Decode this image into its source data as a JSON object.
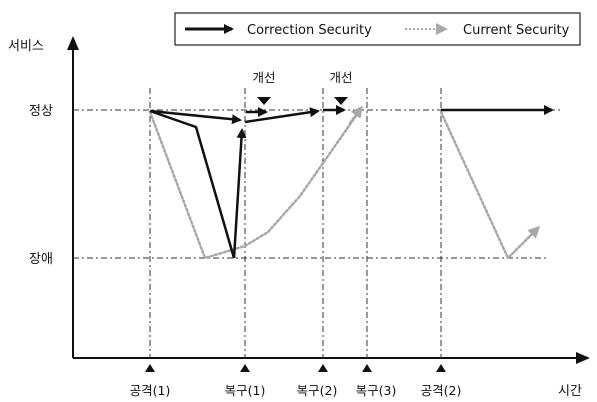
{
  "legend": {
    "correction_label": "Correction Security",
    "current_label": "Current Security"
  },
  "axes": {
    "y_label": "서비스",
    "x_label": "시간"
  },
  "levels": {
    "normal": "정상",
    "failure": "장애"
  },
  "events": [
    {
      "id": "attack1",
      "label": "공격(1)"
    },
    {
      "id": "recover1",
      "label": "복구(1)"
    },
    {
      "id": "recover2",
      "label": "복구(2)"
    },
    {
      "id": "recover3",
      "label": "복구(3)"
    },
    {
      "id": "attack2",
      "label": "공격(2)"
    }
  ],
  "improvements": [
    {
      "id": "improve1",
      "label": "개선"
    },
    {
      "id": "improve2",
      "label": "개선"
    }
  ],
  "colors": {
    "correction": "#111111",
    "current": "#a8a8a8",
    "guide": "#333333"
  }
}
